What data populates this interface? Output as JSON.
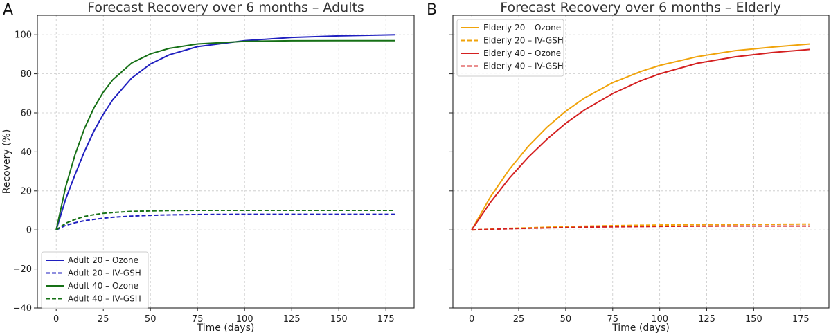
{
  "chart_data": [
    {
      "type": "line",
      "panel_letter": "A",
      "title": "Forecast Recovery over 6 months – Adults",
      "xlabel": "Time (days)",
      "ylabel": "Recovery (%)",
      "xlim": [
        -10,
        190
      ],
      "ylim": [
        -40,
        110
      ],
      "xticks": [
        0,
        25,
        50,
        75,
        100,
        125,
        150,
        175
      ],
      "yticks": [
        -40,
        -20,
        0,
        20,
        40,
        60,
        80,
        100
      ],
      "grid": true,
      "legend_position": "lower-left",
      "x": [
        0,
        5,
        10,
        15,
        20,
        25,
        30,
        40,
        50,
        60,
        75,
        100,
        125,
        150,
        180
      ],
      "series": [
        {
          "name": "Adult 20 – Ozone",
          "color": "#1f1fbf",
          "dash": "solid",
          "values": [
            0,
            15.7,
            28.3,
            40.2,
            50.6,
            59.3,
            66.7,
            77.8,
            85.0,
            89.7,
            93.9,
            97.0,
            98.6,
            99.4,
            100
          ]
        },
        {
          "name": "Adult 20 – IV-GSH",
          "color": "#1f1fbf",
          "dash": "dashed",
          "values": [
            0,
            2.3,
            3.7,
            4.7,
            5.4,
            6.0,
            6.5,
            7.1,
            7.5,
            7.7,
            7.9,
            8.0,
            8.0,
            8.0,
            8.0
          ]
        },
        {
          "name": "Adult 40 – Ozone",
          "color": "#167016",
          "dash": "solid",
          "values": [
            0,
            22.0,
            38.5,
            52.0,
            62.5,
            70.6,
            76.9,
            85.5,
            90.2,
            93.0,
            95.3,
            96.6,
            96.9,
            97.0,
            97.0
          ]
        },
        {
          "name": "Adult 40 – IV-GSH",
          "color": "#167016",
          "dash": "dashed",
          "values": [
            0,
            3.4,
            5.4,
            6.9,
            7.8,
            8.5,
            8.9,
            9.5,
            9.7,
            9.9,
            10.0,
            10.0,
            10.0,
            10.0,
            10.0
          ]
        }
      ]
    },
    {
      "type": "line",
      "panel_letter": "B",
      "title": "Forecast Recovery over 6 months – Elderly",
      "xlabel": "Time (days)",
      "ylabel": "",
      "xlim": [
        -10,
        190
      ],
      "ylim": [
        -40,
        110
      ],
      "xticks": [
        0,
        25,
        50,
        75,
        100,
        125,
        150,
        175
      ],
      "yticks": [],
      "grid": true,
      "legend_position": "upper-left",
      "x": [
        0,
        10,
        20,
        30,
        40,
        50,
        60,
        75,
        90,
        100,
        120,
        140,
        160,
        180
      ],
      "series": [
        {
          "name": "Elderly 20 – Ozone",
          "color": "#f0a30a",
          "dash": "solid",
          "values": [
            0,
            17.0,
            31.0,
            42.8,
            52.6,
            60.8,
            67.6,
            75.5,
            81.2,
            84.3,
            88.8,
            91.8,
            93.7,
            95.3
          ]
        },
        {
          "name": "Elderly 20 – IV-GSH",
          "color": "#f0a30a",
          "dash": "dashed",
          "values": [
            0,
            0.4,
            0.8,
            1.1,
            1.4,
            1.7,
            1.9,
            2.2,
            2.4,
            2.5,
            2.7,
            2.8,
            2.9,
            3.0
          ]
        },
        {
          "name": "Elderly 40 – Ozone",
          "color": "#d42020",
          "dash": "solid",
          "values": [
            0,
            14.2,
            26.5,
            37.2,
            46.5,
            54.6,
            61.5,
            69.9,
            76.5,
            80.0,
            85.4,
            88.7,
            90.9,
            92.5
          ]
        },
        {
          "name": "Elderly 40 – IV-GSH",
          "color": "#d42020",
          "dash": "dashed",
          "values": [
            0,
            0.3,
            0.6,
            0.8,
            1.0,
            1.2,
            1.4,
            1.6,
            1.7,
            1.8,
            1.9,
            2.0,
            2.0,
            2.0
          ]
        }
      ]
    }
  ]
}
